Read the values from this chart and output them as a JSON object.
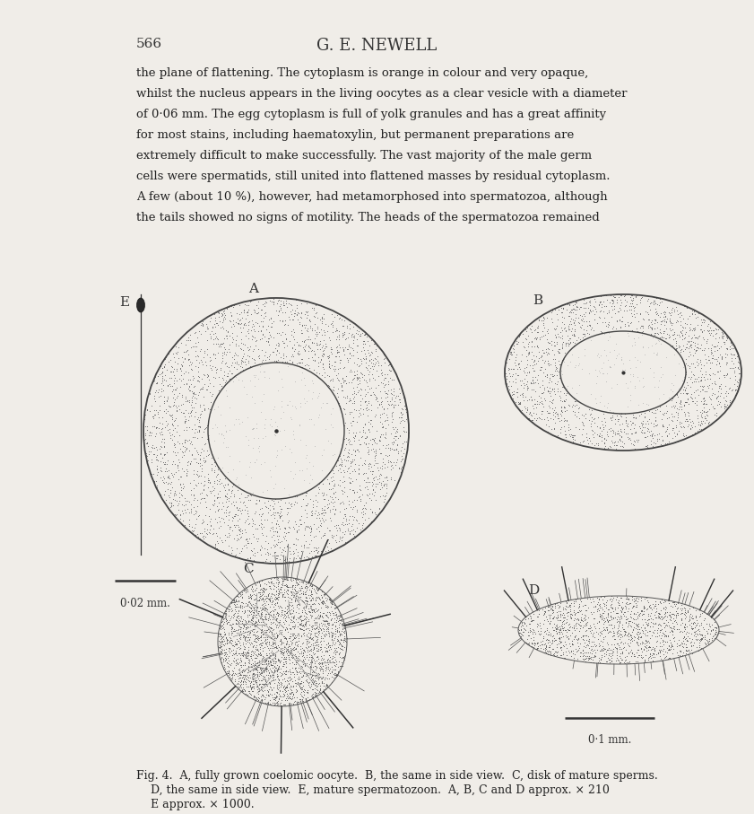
{
  "bg_color": "#f0ede8",
  "page_number": "566",
  "header": "G. E. NEWELL",
  "body_text": [
    "the plane of flattening. The cytoplasm is orange in colour and very opaque,",
    "whilst the nucleus appears in the living oocytes as a clear vesicle with a diameter",
    "of 0·06 mm. The egg cytoplasm is full of yolk granules and has a great affinity",
    "for most stains, including haematoxylin, but permanent preparations are",
    "extremely difficult to make successfully. The vast majority of the male germ",
    "cells were spermatids, still united into flattened masses by residual cytoplasm.",
    "A few (about 10 %), however, had metamorphosed into spermatozoa, although",
    "the tails showed no signs of motility. The heads of the spermatozoa remained"
  ],
  "caption_line1": "Fig. 4.  A, fully grown coelomic oocyte.  B, the same in side view.  C, disk of mature sperms.",
  "caption_line2": "    D, the same in side view.  E, mature spermatozoon.  A, B, C and D approx. × 210",
  "caption_line3": "    E approx. × 1000.",
  "label_A": "A",
  "label_B": "B",
  "label_C": "C",
  "label_D": "D",
  "label_E": "E",
  "scale_bar_left_text": "0·02 mm.",
  "scale_bar_right_text": "0·1 mm."
}
